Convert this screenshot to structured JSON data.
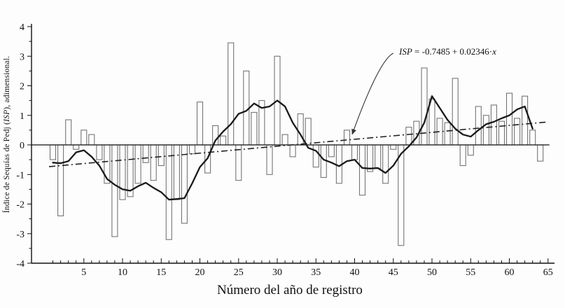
{
  "figure": {
    "x_axis_title": "Número del año de registro",
    "y_axis_title_pre": "Índice de Sequías de Pedj (",
    "y_axis_title_isp": "ISP",
    "y_axis_title_post": "), adimensional.",
    "annotation": {
      "isp": "ISP",
      "body": " = -0.7485 + 0.02346·",
      "x": "x"
    },
    "colors": {
      "bar_outline": "#757575",
      "smoothed_line": "#1a1a1a",
      "trend_line": "#222222",
      "axis": "#111111"
    }
  },
  "chart_data": {
    "type": "bar",
    "title": "",
    "xlabel": "Número del año de registro",
    "ylabel": "Índice de Sequías de Pedj (ISP), adimensional.",
    "x_is_year_index": true,
    "x_start": 1,
    "xlim": [
      -1.8,
      65
    ],
    "ylim": [
      -4,
      4
    ],
    "grid": false,
    "x_ticks_labeled": [
      5,
      10,
      15,
      20,
      25,
      30,
      35,
      40,
      45,
      50,
      55,
      60,
      65
    ],
    "y_ticks": [
      -4,
      -3,
      -2,
      -1,
      0,
      1,
      2,
      3,
      4
    ],
    "bar_values": [
      -0.5,
      -2.4,
      0.85,
      -0.15,
      0.5,
      0.35,
      -0.5,
      -1.3,
      -3.1,
      -1.85,
      -1.75,
      -1.3,
      -0.6,
      -1.2,
      -0.7,
      -3.2,
      -1.85,
      -2.65,
      -0.3,
      1.45,
      -0.95,
      0.65,
      0.3,
      3.45,
      -1.2,
      2.5,
      1.1,
      1.5,
      -1.0,
      3.0,
      0.35,
      -0.4,
      1.05,
      0.9,
      -0.75,
      -1.1,
      -0.4,
      -1.3,
      0.5,
      -0.5,
      -1.7,
      -0.9,
      -0.8,
      -1.3,
      -0.15,
      -3.4,
      0.6,
      0.8,
      2.6,
      1.55,
      0.9,
      0.75,
      2.25,
      -0.7,
      -0.35,
      1.3,
      1.0,
      1.35,
      0.8,
      1.75,
      0.9,
      1.65,
      0.5,
      -0.55,
      0
    ],
    "smoothed_line": {
      "x_start": 1,
      "values": [
        -0.6,
        -0.62,
        -0.55,
        -0.25,
        -0.18,
        -0.4,
        -0.7,
        -1.15,
        -1.35,
        -1.5,
        -1.55,
        -1.4,
        -1.28,
        -1.45,
        -1.6,
        -1.85,
        -1.83,
        -1.8,
        -1.3,
        -0.75,
        -0.45,
        0.15,
        0.45,
        0.7,
        1.05,
        1.15,
        1.4,
        1.25,
        1.3,
        1.5,
        1.3,
        0.75,
        0.35,
        -0.1,
        -0.2,
        -0.5,
        -0.6,
        -0.72,
        -0.55,
        -0.5,
        -0.78,
        -0.8,
        -0.78,
        -0.95,
        -0.7,
        -0.3,
        -0.05,
        0.25,
        0.75,
        1.65,
        1.25,
        0.85,
        0.55,
        0.35,
        0.28,
        0.5,
        0.7,
        0.78,
        0.9,
        1.0,
        1.2,
        1.3,
        0.55
      ]
    },
    "trend_line": {
      "equation": "ISP = -0.7485 + 0.02346·x",
      "intercept": -0.7485,
      "slope": 0.02346,
      "x_range": [
        0.5,
        65
      ],
      "style": "dash-dot"
    },
    "legend": []
  }
}
